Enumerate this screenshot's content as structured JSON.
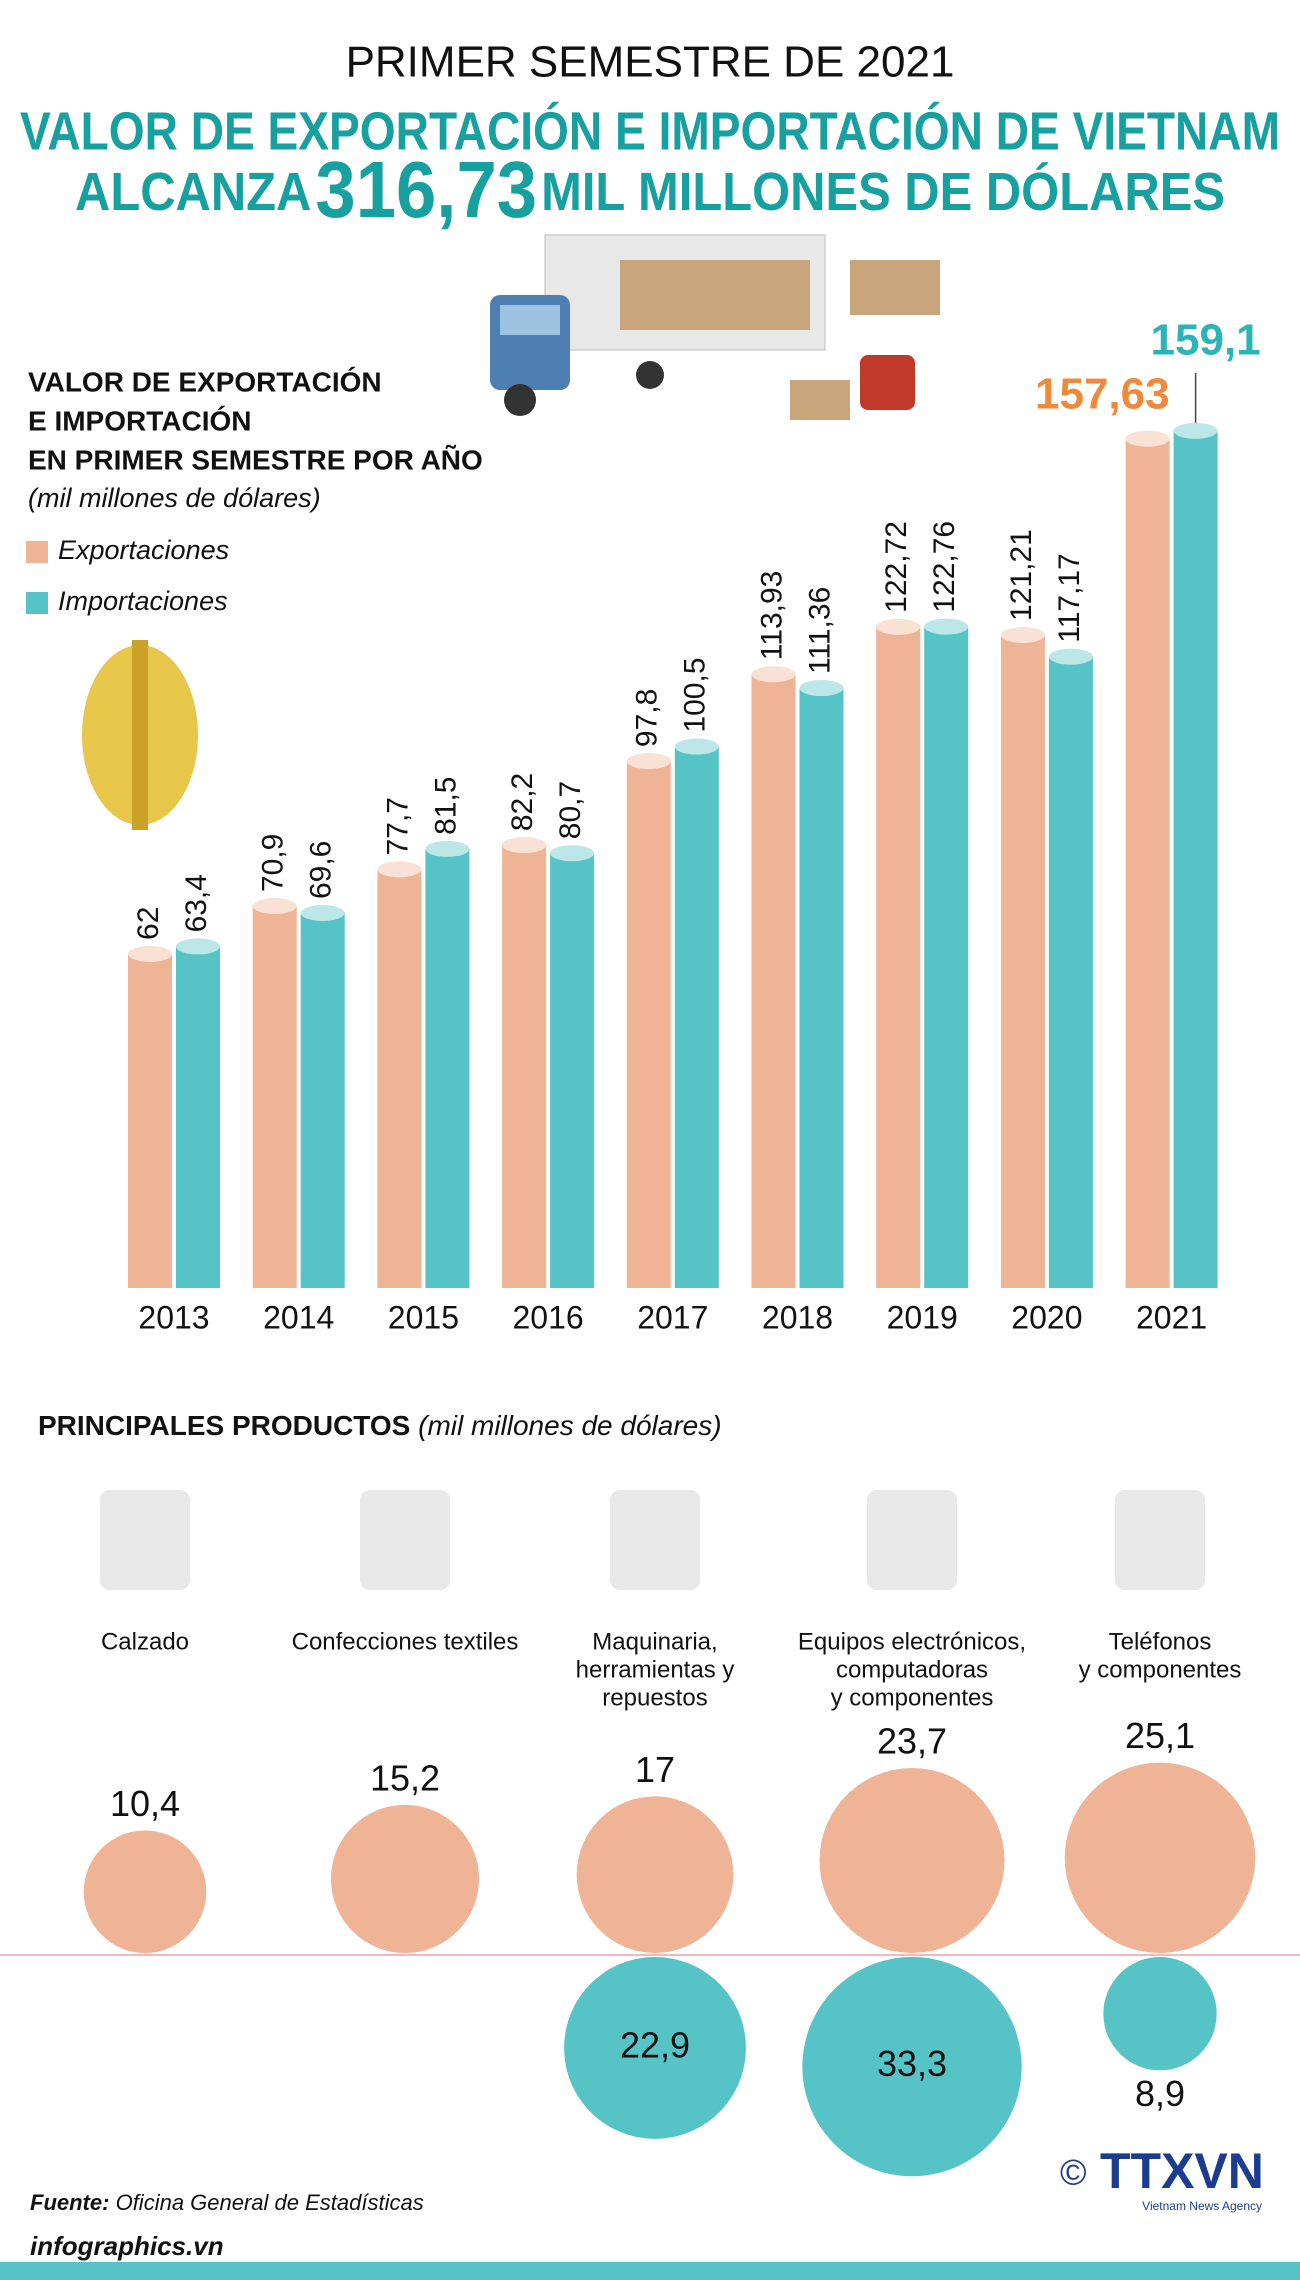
{
  "header": {
    "kicker": "PRIMER SEMESTRE DE 2021",
    "title_line1": "VALOR DE EXPORTACIÓN E IMPORTACIÓN  DE VIETNAM",
    "title_line2_start": "ALCANZA",
    "total": "316,73",
    "title_line2_end": "MIL MILLONES DE DÓLARES"
  },
  "chart_data": [
    {
      "type": "bar",
      "title": [
        "VALOR DE EXPORTACIÓN",
        "E IMPORTACIÓN",
        "EN PRIMER SEMESTRE POR AÑO"
      ],
      "subtitle": "(mil millones de dólares)",
      "categories": [
        "2013",
        "2014",
        "2015",
        "2016",
        "2017",
        "2018",
        "2019",
        "2020",
        "2021"
      ],
      "series": [
        {
          "name": "Exportaciones",
          "color": "#efb496",
          "values": [
            62,
            70.9,
            77.7,
            82.2,
            97.8,
            113.93,
            122.72,
            121.21,
            157.63
          ],
          "value_labels": [
            "62",
            "70,9",
            "77,7",
            "82,2",
            "97,8",
            "113,93",
            "122,72",
            "121,21",
            "157,63"
          ]
        },
        {
          "name": "Importaciones",
          "color": "#56c3c6",
          "values": [
            63.4,
            69.6,
            81.5,
            80.7,
            100.5,
            111.36,
            122.76,
            117.17,
            159.1
          ],
          "value_labels": [
            "63,4",
            "69,6",
            "81,5",
            "80,7",
            "100,5",
            "111,36",
            "122,76",
            "117,17",
            "159,1"
          ]
        }
      ],
      "ylim": [
        0,
        160
      ]
    },
    {
      "type": "bubble",
      "title": "PRINCIPALES PRODUCTOS",
      "subtitle": "(mil millones de dólares)",
      "categories": [
        [
          "Calzado"
        ],
        [
          "Confecciones textiles"
        ],
        [
          "Maquinaria,",
          "herramientas y",
          "repuestos"
        ],
        [
          "Equipos electrónicos,",
          "computadoras",
          "y componentes"
        ],
        [
          "Teléfonos",
          "y componentes"
        ]
      ],
      "series": [
        {
          "color": "#efb496",
          "values": [
            10.4,
            15.2,
            17,
            23.7,
            25.1
          ],
          "value_labels": [
            "10,4",
            "15,2",
            "17",
            "23,7",
            "25,1"
          ]
        },
        {
          "color": "#56c3c6",
          "values": [
            null,
            null,
            22.9,
            33.3,
            8.9
          ],
          "value_labels": [
            null,
            null,
            "22,9",
            "33,3",
            "8,9"
          ]
        }
      ]
    }
  ],
  "footer": {
    "source_label": "Fuente:",
    "source": "Oficina General de Estadísticas",
    "site": "infographics.vn",
    "copyright": "©",
    "agency": "TTXVN",
    "agency_full": "Vietnam News Agency"
  }
}
